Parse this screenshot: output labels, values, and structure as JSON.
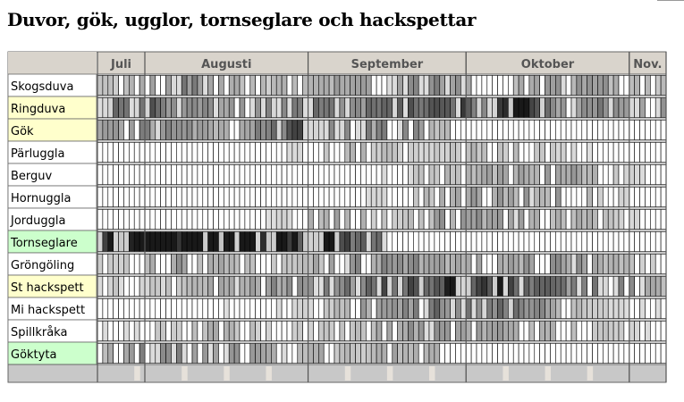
{
  "title": "Duvor, gök, ugglor, tornseglare och hackspettar",
  "chart_data": {
    "type": "heatmap",
    "title": "Duvor, gök, ugglor, tornseglare och hackspettar",
    "months": [
      {
        "name": "Juli",
        "days": 9
      },
      {
        "name": "Augusti",
        "days": 31
      },
      {
        "name": "September",
        "days": 30
      },
      {
        "name": "Oktober",
        "days": 31
      },
      {
        "name": "Nov.",
        "days": 7
      }
    ],
    "rows": [
      {
        "label": "Skogsduva",
        "highlight": "#ffffff",
        "peaks": [
          [
            0.15,
            0.35,
            6
          ],
          [
            0.55,
            0.3,
            14
          ],
          [
            0.85,
            0.25,
            8
          ]
        ],
        "base": 0.2
      },
      {
        "label": "Ringduva",
        "highlight": "#ffffcc",
        "peaks": [
          [
            0.06,
            0.45,
            8
          ],
          [
            0.35,
            0.4,
            12
          ],
          [
            0.6,
            0.55,
            10
          ],
          [
            0.74,
            0.9,
            3
          ],
          [
            0.9,
            0.4,
            8
          ]
        ],
        "base": 0.25
      },
      {
        "label": "Gök",
        "highlight": "#ffffcc",
        "peaks": [
          [
            0.1,
            0.35,
            10
          ],
          [
            0.35,
            0.6,
            6
          ],
          [
            0.5,
            0.35,
            8
          ]
        ],
        "base": 0.15,
        "end": 0.62
      },
      {
        "label": "Pärluggla",
        "highlight": "#ffffff",
        "peaks": [
          [
            0.45,
            0.25,
            8
          ],
          [
            0.7,
            0.25,
            10
          ]
        ],
        "base": 0.0
      },
      {
        "label": "Berguv",
        "highlight": "#ffffff",
        "peaks": [
          [
            0.68,
            0.3,
            12
          ],
          [
            0.85,
            0.25,
            8
          ]
        ],
        "base": 0.0
      },
      {
        "label": "Hornuggla",
        "highlight": "#ffffff",
        "peaks": [
          [
            0.62,
            0.25,
            10
          ],
          [
            0.78,
            0.35,
            10
          ]
        ],
        "base": 0.0
      },
      {
        "label": "Jorduggla",
        "highlight": "#ffffff",
        "peaks": [
          [
            0.4,
            0.3,
            6
          ],
          [
            0.62,
            0.35,
            10
          ],
          [
            0.8,
            0.3,
            10
          ]
        ],
        "base": 0.0
      },
      {
        "label": "Tornseglare",
        "highlight": "#ccffcc",
        "peaks": [
          [
            0.08,
            0.85,
            10
          ],
          [
            0.25,
            0.75,
            14
          ],
          [
            0.4,
            0.45,
            8
          ]
        ],
        "base": 0.3,
        "end": 0.5
      },
      {
        "label": "Gröngöling",
        "highlight": "#ffffff",
        "peaks": [
          [
            0.15,
            0.3,
            8
          ],
          [
            0.5,
            0.4,
            12
          ],
          [
            0.8,
            0.35,
            10
          ]
        ],
        "base": 0.1
      },
      {
        "label": "St hackspett",
        "highlight": "#ffffcc",
        "peaks": [
          [
            0.3,
            0.3,
            10
          ],
          [
            0.55,
            0.55,
            12
          ],
          [
            0.7,
            0.55,
            10
          ],
          [
            0.88,
            0.35,
            8
          ]
        ],
        "base": 0.15
      },
      {
        "label": "Mi hackspett",
        "highlight": "#ffffff",
        "peaks": [
          [
            0.55,
            0.4,
            12
          ],
          [
            0.72,
            0.45,
            10
          ]
        ],
        "base": 0.05
      },
      {
        "label": "Spillkråka",
        "highlight": "#ffffff",
        "peaks": [
          [
            0.2,
            0.25,
            8
          ],
          [
            0.55,
            0.35,
            12
          ],
          [
            0.78,
            0.3,
            10
          ]
        ],
        "base": 0.05
      },
      {
        "label": "Göktyta",
        "highlight": "#ccffcc",
        "peaks": [
          [
            0.1,
            0.4,
            8
          ],
          [
            0.3,
            0.35,
            10
          ],
          [
            0.55,
            0.25,
            6
          ]
        ],
        "base": 0.1,
        "end": 0.6
      }
    ]
  }
}
